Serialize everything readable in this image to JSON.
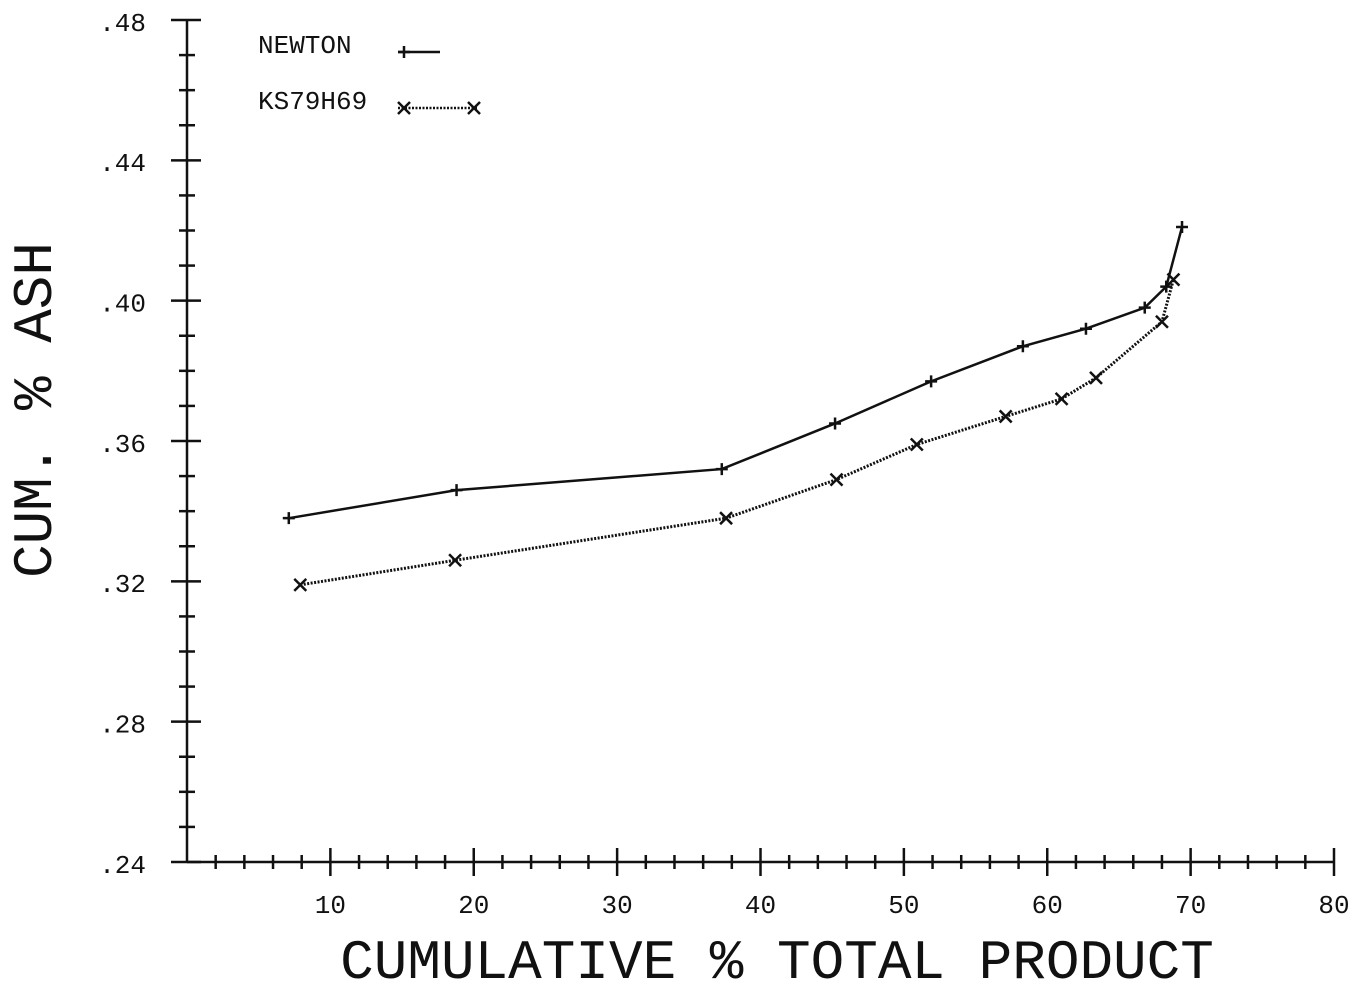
{
  "chart_data": {
    "type": "line",
    "xlabel": "CUMULATIVE % TOTAL PRODUCT",
    "ylabel": "CUM. % ASH",
    "xlim": [
      0,
      80
    ],
    "ylim": [
      0.24,
      0.48
    ],
    "xticks": [
      10,
      20,
      30,
      40,
      50,
      60,
      70,
      80
    ],
    "xminorticks": [
      2,
      4,
      6,
      8,
      12,
      14,
      16,
      18,
      22,
      24,
      26,
      28,
      32,
      34,
      36,
      38,
      42,
      44,
      46,
      48,
      52,
      54,
      56,
      58,
      62,
      64,
      66,
      68,
      72,
      74,
      76,
      78
    ],
    "yticks": [
      {
        "value": 0.24,
        "label": ".24"
      },
      {
        "value": 0.28,
        "label": ".28"
      },
      {
        "value": 0.32,
        "label": ".32"
      },
      {
        "value": 0.36,
        "label": ".36"
      },
      {
        "value": 0.4,
        "label": ".40"
      },
      {
        "value": 0.44,
        "label": ".44"
      },
      {
        "value": 0.48,
        "label": ".48"
      }
    ],
    "yminorticks": [
      0.25,
      0.26,
      0.27,
      0.29,
      0.3,
      0.31,
      0.33,
      0.34,
      0.35,
      0.37,
      0.38,
      0.39,
      0.41,
      0.42,
      0.43,
      0.45,
      0.46,
      0.47
    ],
    "legend": "upper left",
    "series": [
      {
        "name": "NEWTON",
        "color": "#111111",
        "marker": "+",
        "dashed": false,
        "x": [
          7.1,
          18.8,
          37.3,
          45.2,
          51.9,
          58.3,
          62.7,
          66.8,
          68.3,
          69.4
        ],
        "values": [
          0.338,
          0.346,
          0.352,
          0.365,
          0.377,
          0.387,
          0.392,
          0.398,
          0.404,
          0.421
        ]
      },
      {
        "name": "KS79H69",
        "color": "#111111",
        "marker": "x",
        "dashed": true,
        "x": [
          7.9,
          18.7,
          37.6,
          45.3,
          50.9,
          57.1,
          61.0,
          63.4,
          68.0,
          68.8
        ],
        "values": [
          0.319,
          0.326,
          0.338,
          0.349,
          0.359,
          0.367,
          0.372,
          0.378,
          0.394,
          0.406
        ]
      }
    ]
  }
}
